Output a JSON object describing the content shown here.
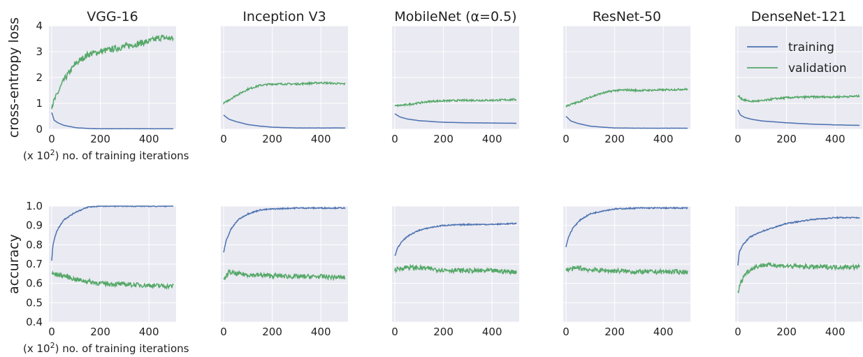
{
  "x_note": {
    "prefix": "(x 10",
    "exp": "2",
    "suffix": ") no. of training iterations"
  },
  "colors": {
    "training": "#4c72b0",
    "validation": "#55a868",
    "plot_bg": "#eaeaf2",
    "grid": "#ffffff"
  },
  "legend": {
    "placement": "top-right",
    "entries": [
      "training",
      "validation"
    ]
  },
  "chart_data": [
    {
      "type": "line",
      "row": "loss",
      "title": "VGG-16",
      "ylabel": "cross-entropy loss",
      "xlim": [
        0,
        500
      ],
      "ylim": [
        0,
        4
      ],
      "xticks": [
        0,
        200,
        400
      ],
      "yticks": [
        0,
        1,
        2,
        3,
        4
      ],
      "series": [
        {
          "name": "training",
          "x": [
            0,
            10,
            25,
            50,
            100,
            150,
            200,
            300,
            400,
            500
          ],
          "y": [
            0.65,
            0.35,
            0.25,
            0.15,
            0.06,
            0.03,
            0.02,
            0.02,
            0.02,
            0.02
          ]
        },
        {
          "name": "validation",
          "x": [
            0,
            20,
            50,
            80,
            100,
            150,
            200,
            250,
            300,
            350,
            400,
            450,
            500
          ],
          "y": [
            0.9,
            1.3,
            1.9,
            2.3,
            2.55,
            2.9,
            3.0,
            3.1,
            3.2,
            3.3,
            3.4,
            3.55,
            3.5
          ]
        }
      ]
    },
    {
      "type": "line",
      "row": "loss",
      "title": "Inception V3",
      "xlim": [
        0,
        500
      ],
      "ylim": [
        0,
        4
      ],
      "xticks": [
        0,
        200,
        400
      ],
      "series": [
        {
          "name": "training",
          "x": [
            0,
            20,
            50,
            100,
            150,
            200,
            300,
            400,
            500
          ],
          "y": [
            0.55,
            0.4,
            0.3,
            0.18,
            0.12,
            0.08,
            0.05,
            0.05,
            0.05
          ]
        },
        {
          "name": "validation",
          "x": [
            0,
            50,
            100,
            150,
            200,
            300,
            400,
            500
          ],
          "y": [
            1.0,
            1.3,
            1.55,
            1.7,
            1.75,
            1.75,
            1.8,
            1.75
          ]
        }
      ]
    },
    {
      "type": "line",
      "row": "loss",
      "title": "MobileNet (α=0.5)",
      "xlim": [
        0,
        500
      ],
      "ylim": [
        0,
        4
      ],
      "xticks": [
        0,
        200,
        400
      ],
      "series": [
        {
          "name": "training",
          "x": [
            0,
            20,
            50,
            100,
            200,
            300,
            400,
            500
          ],
          "y": [
            0.6,
            0.48,
            0.4,
            0.33,
            0.27,
            0.25,
            0.24,
            0.23
          ]
        },
        {
          "name": "validation",
          "x": [
            0,
            50,
            100,
            150,
            200,
            300,
            400,
            500
          ],
          "y": [
            0.9,
            0.95,
            1.02,
            1.08,
            1.1,
            1.12,
            1.12,
            1.15
          ]
        }
      ]
    },
    {
      "type": "line",
      "row": "loss",
      "title": "ResNet-50",
      "xlim": [
        0,
        500
      ],
      "ylim": [
        0,
        4
      ],
      "xticks": [
        0,
        200,
        400
      ],
      "series": [
        {
          "name": "training",
          "x": [
            0,
            20,
            50,
            100,
            150,
            200,
            300,
            400,
            500
          ],
          "y": [
            0.5,
            0.32,
            0.22,
            0.12,
            0.08,
            0.05,
            0.04,
            0.04,
            0.04
          ]
        },
        {
          "name": "validation",
          "x": [
            0,
            50,
            100,
            150,
            200,
            250,
            300,
            400,
            500
          ],
          "y": [
            0.9,
            1.05,
            1.25,
            1.4,
            1.5,
            1.52,
            1.5,
            1.52,
            1.55
          ]
        }
      ]
    },
    {
      "type": "line",
      "row": "loss",
      "title": "DenseNet-121",
      "xlim": [
        0,
        500
      ],
      "ylim": [
        0,
        4
      ],
      "xticks": [
        0,
        200,
        400
      ],
      "series": [
        {
          "name": "training",
          "x": [
            0,
            10,
            30,
            60,
            100,
            200,
            300,
            400,
            500
          ],
          "y": [
            0.75,
            0.55,
            0.45,
            0.38,
            0.32,
            0.25,
            0.2,
            0.17,
            0.15
          ]
        },
        {
          "name": "validation",
          "x": [
            0,
            20,
            50,
            100,
            150,
            200,
            300,
            400,
            500
          ],
          "y": [
            1.3,
            1.15,
            1.08,
            1.1,
            1.18,
            1.22,
            1.25,
            1.25,
            1.28
          ]
        }
      ]
    },
    {
      "type": "line",
      "row": "accuracy",
      "title": "VGG-16",
      "ylabel": "accuracy",
      "xlim": [
        0,
        500
      ],
      "ylim": [
        0.4,
        1.0
      ],
      "xticks": [
        0,
        200,
        400
      ],
      "yticks": [
        0.4,
        0.5,
        0.6,
        0.7,
        0.8,
        0.9,
        1.0
      ],
      "series": [
        {
          "name": "training",
          "x": [
            0,
            5,
            20,
            50,
            100,
            150,
            200,
            300,
            400,
            500
          ],
          "y": [
            0.72,
            0.8,
            0.87,
            0.93,
            0.97,
            0.995,
            1.0,
            1.0,
            1.0,
            1.0
          ]
        },
        {
          "name": "validation",
          "x": [
            0,
            50,
            100,
            150,
            200,
            300,
            400,
            500
          ],
          "y": [
            0.65,
            0.64,
            0.62,
            0.61,
            0.6,
            0.595,
            0.59,
            0.585
          ]
        }
      ]
    },
    {
      "type": "line",
      "row": "accuracy",
      "title": "Inception V3",
      "xlim": [
        0,
        500
      ],
      "ylim": [
        0.4,
        1.0
      ],
      "xticks": [
        0,
        200,
        400
      ],
      "series": [
        {
          "name": "training",
          "x": [
            0,
            10,
            30,
            60,
            100,
            150,
            200,
            300,
            400,
            500
          ],
          "y": [
            0.76,
            0.82,
            0.88,
            0.93,
            0.96,
            0.98,
            0.985,
            0.99,
            0.99,
            0.99
          ]
        },
        {
          "name": "validation",
          "x": [
            0,
            20,
            50,
            100,
            200,
            300,
            400,
            500
          ],
          "y": [
            0.61,
            0.66,
            0.65,
            0.645,
            0.64,
            0.635,
            0.635,
            0.63
          ]
        }
      ]
    },
    {
      "type": "line",
      "row": "accuracy",
      "title": "MobileNet (α=0.5)",
      "xlim": [
        0,
        500
      ],
      "ylim": [
        0.4,
        1.0
      ],
      "xticks": [
        0,
        200,
        400
      ],
      "series": [
        {
          "name": "training",
          "x": [
            0,
            10,
            30,
            60,
            100,
            150,
            200,
            300,
            400,
            500
          ],
          "y": [
            0.74,
            0.78,
            0.82,
            0.85,
            0.875,
            0.89,
            0.9,
            0.905,
            0.905,
            0.91
          ]
        },
        {
          "name": "validation",
          "x": [
            0,
            50,
            100,
            200,
            300,
            400,
            500
          ],
          "y": [
            0.67,
            0.685,
            0.68,
            0.67,
            0.665,
            0.665,
            0.66
          ]
        }
      ]
    },
    {
      "type": "line",
      "row": "accuracy",
      "title": "ResNet-50",
      "xlim": [
        0,
        500
      ],
      "ylim": [
        0.4,
        1.0
      ],
      "xticks": [
        0,
        200,
        400
      ],
      "series": [
        {
          "name": "training",
          "x": [
            0,
            10,
            30,
            60,
            100,
            150,
            200,
            300,
            400,
            500
          ],
          "y": [
            0.79,
            0.84,
            0.89,
            0.93,
            0.96,
            0.975,
            0.985,
            0.99,
            0.99,
            0.99
          ]
        },
        {
          "name": "validation",
          "x": [
            0,
            50,
            100,
            200,
            300,
            400,
            500
          ],
          "y": [
            0.67,
            0.68,
            0.67,
            0.665,
            0.66,
            0.66,
            0.66
          ]
        }
      ]
    },
    {
      "type": "line",
      "row": "accuracy",
      "title": "DenseNet-121",
      "xlim": [
        0,
        500
      ],
      "ylim": [
        0.4,
        1.0
      ],
      "xticks": [
        0,
        200,
        400
      ],
      "series": [
        {
          "name": "training",
          "x": [
            0,
            5,
            20,
            50,
            100,
            150,
            200,
            300,
            400,
            500
          ],
          "y": [
            0.69,
            0.76,
            0.8,
            0.84,
            0.87,
            0.89,
            0.91,
            0.93,
            0.94,
            0.94
          ]
        },
        {
          "name": "validation",
          "x": [
            0,
            10,
            30,
            60,
            100,
            150,
            200,
            300,
            400,
            500
          ],
          "y": [
            0.55,
            0.6,
            0.65,
            0.68,
            0.695,
            0.695,
            0.69,
            0.685,
            0.685,
            0.685
          ]
        }
      ]
    }
  ]
}
